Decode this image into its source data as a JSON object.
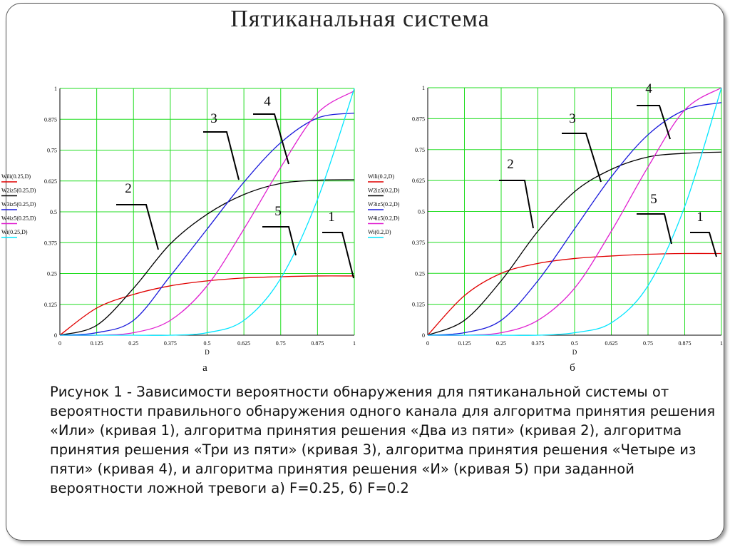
{
  "title": "Пятиканальная система",
  "caption": "Рисунок 1 - Зависимости вероятности обнаружения для пятиканальной системы от вероятности правильного обнаружения одного канала для алгоритма принятия решения «Или» (кривая 1), алгоритма принятия решения «Два из пяти» (кривая 2), алгоритма принятия решения «Три из пяти» (кривая 3), алгоритма принятия решения «Четыре из пяти» (кривая 4), и алгоритма принятия решения «И» (кривая 5) при заданной вероятности ложной тревоги а) F=0.25, б) F=0.2",
  "chart_data": [
    {
      "type": "line",
      "subtitle": "а",
      "x_label": "D",
      "x": [
        0,
        0.125,
        0.25,
        0.375,
        0.5,
        0.625,
        0.75,
        0.875,
        1
      ],
      "xlim": [
        0,
        1
      ],
      "ylim": [
        0,
        1
      ],
      "xticks": [
        0,
        0.125,
        0.25,
        0.375,
        0.5,
        0.625,
        0.75,
        0.875,
        1
      ],
      "yticks": [
        0,
        0.125,
        0.25,
        0.375,
        0.5,
        0.625,
        0.75,
        0.875,
        1
      ],
      "grid": true,
      "legend": "left",
      "annotations": [
        "1",
        "2",
        "3",
        "4",
        "5"
      ],
      "series": [
        {
          "name": "Wili(0.25,D)",
          "color": "#e00000",
          "values": [
            0,
            0.11,
            0.165,
            0.2,
            0.22,
            0.232,
            0.237,
            0.24,
            0.24
          ]
        },
        {
          "name": "W2iz5(0.25,D)",
          "color": "#000000",
          "values": [
            0,
            0.04,
            0.19,
            0.37,
            0.49,
            0.57,
            0.615,
            0.628,
            0.63
          ]
        },
        {
          "name": "W3iz5(0.25,D)",
          "color": "#1a1adb",
          "values": [
            0,
            0.01,
            0.06,
            0.24,
            0.43,
            0.62,
            0.78,
            0.88,
            0.9
          ]
        },
        {
          "name": "W4iz5(0.25,D)",
          "color": "#e020d0",
          "values": [
            0,
            0,
            0.01,
            0.06,
            0.2,
            0.43,
            0.68,
            0.9,
            0.99
          ]
        },
        {
          "name": "Wi(0.25,D)",
          "color": "#00e5ff",
          "values": [
            0,
            0,
            0,
            0,
            0.01,
            0.06,
            0.23,
            0.55,
            1
          ]
        }
      ]
    },
    {
      "type": "line",
      "subtitle": "б",
      "x_label": "D",
      "x": [
        0,
        0.125,
        0.25,
        0.375,
        0.5,
        0.625,
        0.75,
        0.875,
        1
      ],
      "xlim": [
        0,
        1
      ],
      "ylim": [
        0,
        1
      ],
      "xticks": [
        0,
        0.125,
        0.25,
        0.375,
        0.5,
        0.625,
        0.75,
        0.875,
        1
      ],
      "yticks": [
        0,
        0.125,
        0.25,
        0.375,
        0.5,
        0.625,
        0.75,
        0.875,
        1
      ],
      "grid": true,
      "legend": "left",
      "annotations": [
        "1",
        "2",
        "3",
        "4",
        "5"
      ],
      "series": [
        {
          "name": "Wili(0.2,D)",
          "color": "#e00000",
          "values": [
            0,
            0.16,
            0.25,
            0.29,
            0.31,
            0.32,
            0.327,
            0.33,
            0.33
          ]
        },
        {
          "name": "W2iz5(0.2,D)",
          "color": "#000000",
          "values": [
            0,
            0.06,
            0.22,
            0.42,
            0.58,
            0.67,
            0.72,
            0.735,
            0.74
          ]
        },
        {
          "name": "W3iz5(0.2,D)",
          "color": "#1a1adb",
          "values": [
            0,
            0.01,
            0.06,
            0.22,
            0.43,
            0.64,
            0.81,
            0.91,
            0.94
          ]
        },
        {
          "name": "W4iz5(0.2,D)",
          "color": "#e020d0",
          "values": [
            0,
            0,
            0.01,
            0.06,
            0.19,
            0.42,
            0.68,
            0.91,
            1
          ]
        },
        {
          "name": "Wi(0.2,D)",
          "color": "#00e5ff",
          "values": [
            0,
            0,
            0,
            0,
            0.01,
            0.05,
            0.2,
            0.52,
            1
          ]
        }
      ]
    }
  ]
}
